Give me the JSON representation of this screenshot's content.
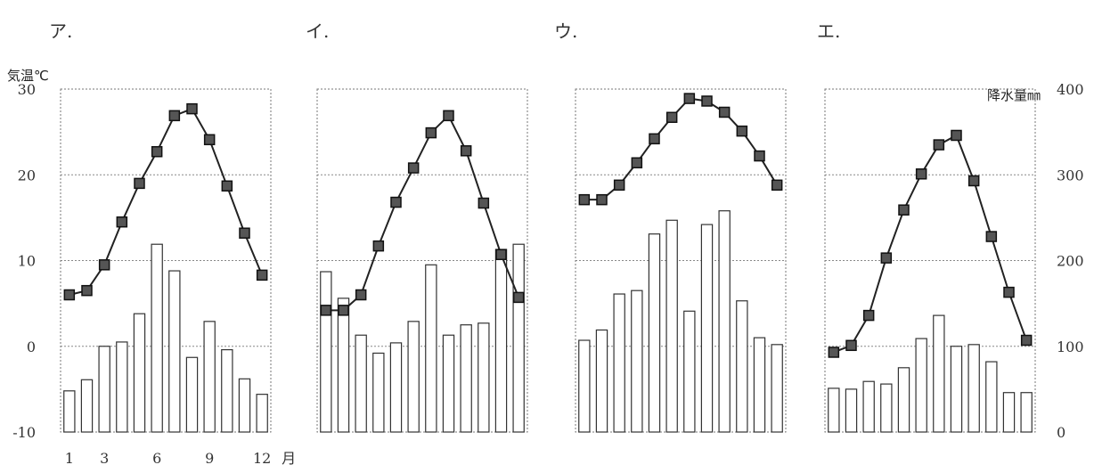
{
  "chart_data": {
    "type": "climate-graph",
    "left_axis": {
      "label": "気温℃",
      "ticks": [
        "30",
        "20",
        "10",
        "0",
        "-10"
      ],
      "ylim": [
        -10,
        30
      ]
    },
    "right_axis": {
      "label": "降水量㎜",
      "ticks": [
        "400",
        "300",
        "200",
        "100",
        "0"
      ],
      "ylim": [
        0,
        400
      ]
    },
    "x_ticks": [
      "1",
      "3",
      "6",
      "9",
      "12"
    ],
    "x_unit": "月",
    "months": [
      1,
      2,
      3,
      4,
      5,
      6,
      7,
      8,
      9,
      10,
      11,
      12
    ],
    "panels": [
      {
        "label": "ア.",
        "temperature": [
          6,
          6.5,
          9.5,
          14.5,
          19,
          22.7,
          26.9,
          27.7,
          24.1,
          18.7,
          13.2,
          8.3
        ],
        "precipitation": [
          48,
          61,
          100,
          105,
          138,
          219,
          188,
          87,
          129,
          96,
          62,
          44
        ]
      },
      {
        "label": "イ.",
        "temperature": [
          4.2,
          4.2,
          6,
          11.7,
          16.8,
          20.8,
          24.9,
          26.9,
          22.8,
          16.7,
          10.7,
          5.7
        ],
        "precipitation": [
          187,
          156,
          113,
          92,
          104,
          129,
          195,
          113,
          125,
          127,
          213,
          219
        ]
      },
      {
        "label": "ウ.",
        "temperature": [
          17.1,
          17.1,
          18.8,
          21.4,
          24.2,
          26.7,
          28.9,
          28.6,
          27.3,
          25.1,
          22.2,
          18.8
        ],
        "precipitation": [
          107,
          119,
          161,
          165,
          231,
          247,
          141,
          242,
          258,
          153,
          110,
          102
        ]
      },
      {
        "label": "エ.",
        "temperature": [
          -0.7,
          0.1,
          3.6,
          10.3,
          15.9,
          20.1,
          23.5,
          24.6,
          19.3,
          12.8,
          6.3,
          0.7
        ],
        "precipitation": [
          51,
          50,
          59,
          56,
          75,
          109,
          136,
          100,
          102,
          82,
          46,
          46
        ]
      }
    ]
  }
}
